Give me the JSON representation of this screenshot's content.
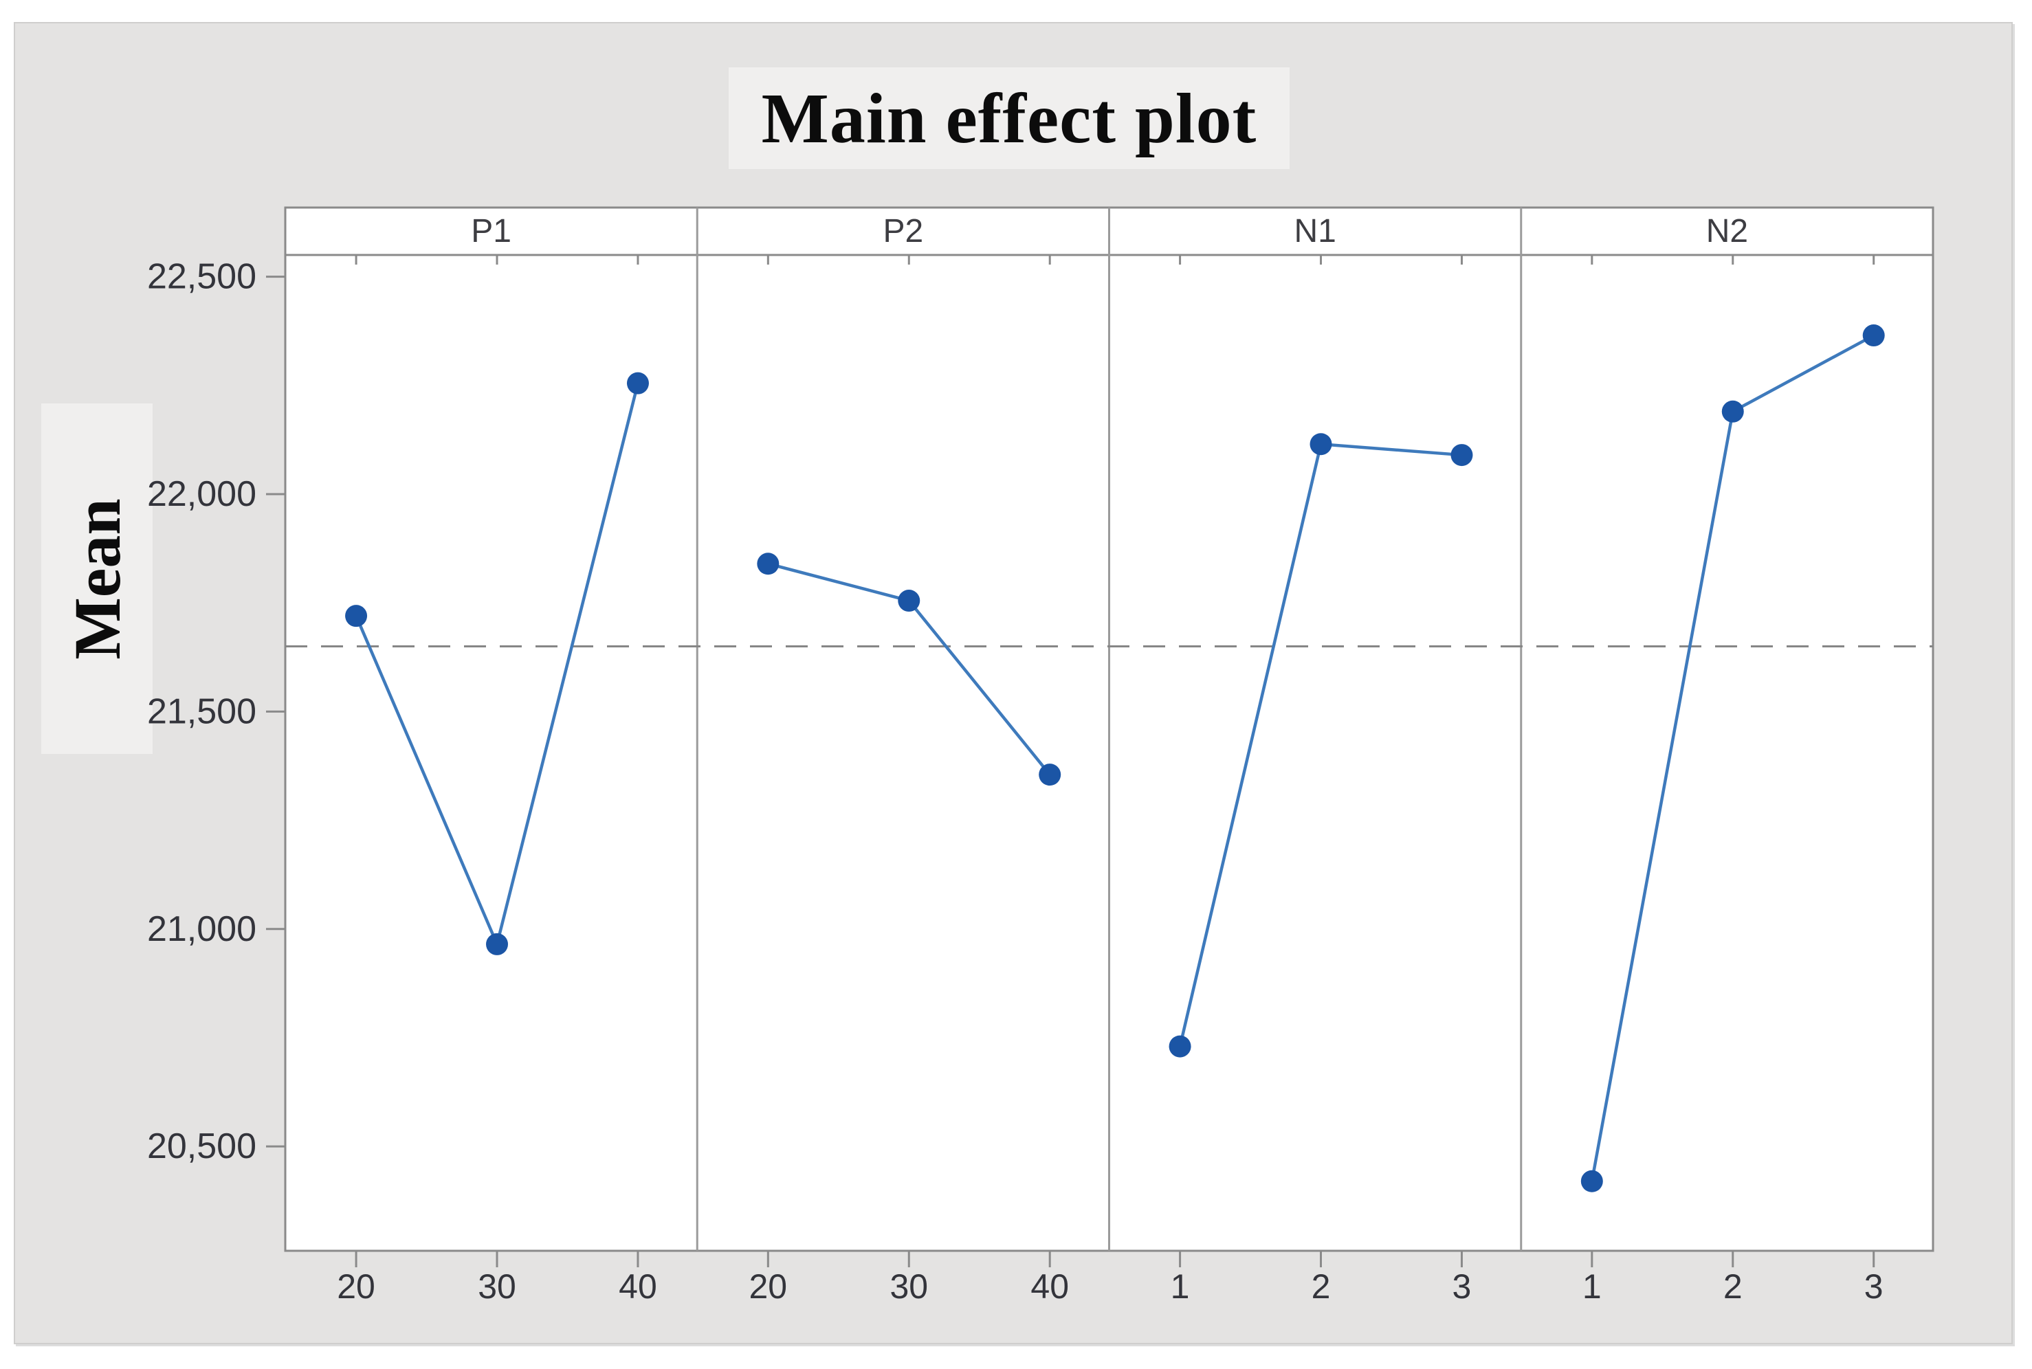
{
  "chart_data": {
    "type": "line",
    "title": "Main effect plot",
    "ylabel": "Mean",
    "xlabel": "",
    "legend": "none",
    "grid": false,
    "ylim": [
      20260,
      22550
    ],
    "yticks": [
      22500,
      22000,
      21500,
      21000,
      20500
    ],
    "reference_line_mean": 21650,
    "panels": [
      {
        "label": "P1",
        "categories": [
          "20",
          "30",
          "40"
        ],
        "values": [
          21720,
          20965,
          22255
        ]
      },
      {
        "label": "P2",
        "categories": [
          "20",
          "30",
          "40"
        ],
        "values": [
          21840,
          21755,
          21355
        ]
      },
      {
        "label": "N1",
        "categories": [
          "1",
          "2",
          "3"
        ],
        "values": [
          20730,
          22115,
          22090
        ]
      },
      {
        "label": "N2",
        "categories": [
          "1",
          "2",
          "3"
        ],
        "values": [
          20420,
          22190,
          22365
        ]
      }
    ],
    "colors": {
      "marker": "#1b55a5",
      "line": "#3e7abc",
      "dashed_reference": "#868686",
      "frame": "#8a8a8a",
      "panel_divider": "#9b9b9b",
      "tick_label": "#33343b",
      "panel_label": "#3d3d42",
      "plot_background": "#ffffff",
      "canvas_background": "#e4e3e2",
      "label_strip_background": "#f0efee"
    }
  }
}
